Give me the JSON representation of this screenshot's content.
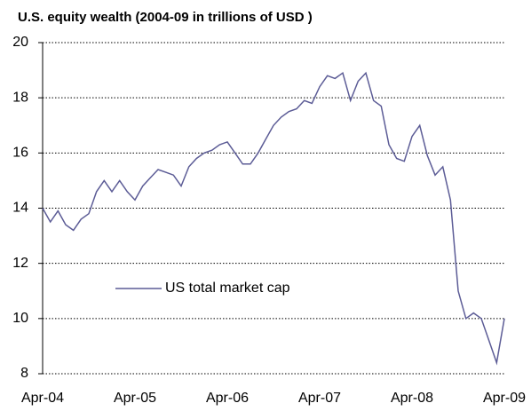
{
  "chart_data": {
    "type": "line",
    "title": "U.S. equity wealth (2004-09 in trillions of USD )",
    "categories": [
      "Apr-04",
      null,
      null,
      null,
      null,
      null,
      null,
      null,
      null,
      null,
      null,
      null,
      "Apr-05",
      null,
      null,
      null,
      null,
      null,
      null,
      null,
      null,
      null,
      null,
      null,
      "Apr-06",
      null,
      null,
      null,
      null,
      null,
      null,
      null,
      null,
      null,
      null,
      null,
      "Apr-07",
      null,
      null,
      null,
      null,
      null,
      null,
      null,
      null,
      null,
      null,
      null,
      "Apr-08",
      null,
      null,
      null,
      null,
      null,
      null,
      null,
      null,
      null,
      null,
      null,
      "Apr-09"
    ],
    "series": [
      {
        "name": "US total market cap",
        "color": "#5c5c96",
        "values": [
          14.0,
          13.5,
          13.9,
          13.4,
          13.2,
          13.6,
          13.8,
          14.6,
          15.0,
          14.6,
          15.0,
          14.6,
          14.3,
          14.8,
          15.1,
          15.4,
          15.3,
          15.2,
          14.8,
          15.5,
          15.8,
          16.0,
          16.1,
          16.3,
          16.4,
          16.0,
          15.6,
          15.6,
          16.0,
          16.5,
          17.0,
          17.3,
          17.5,
          17.6,
          17.9,
          17.8,
          18.4,
          18.8,
          18.7,
          18.9,
          17.9,
          18.6,
          18.9,
          17.9,
          17.7,
          16.3,
          15.8,
          15.7,
          16.6,
          17.0,
          15.9,
          15.2,
          15.5,
          14.3,
          11.0,
          10.0,
          10.2,
          10.0,
          9.2,
          8.4,
          10.0
        ]
      }
    ],
    "ylim": [
      8,
      20
    ],
    "yticks": [
      8,
      10,
      12,
      14,
      16,
      18,
      20
    ],
    "grid": true,
    "legend": "middle-left"
  }
}
